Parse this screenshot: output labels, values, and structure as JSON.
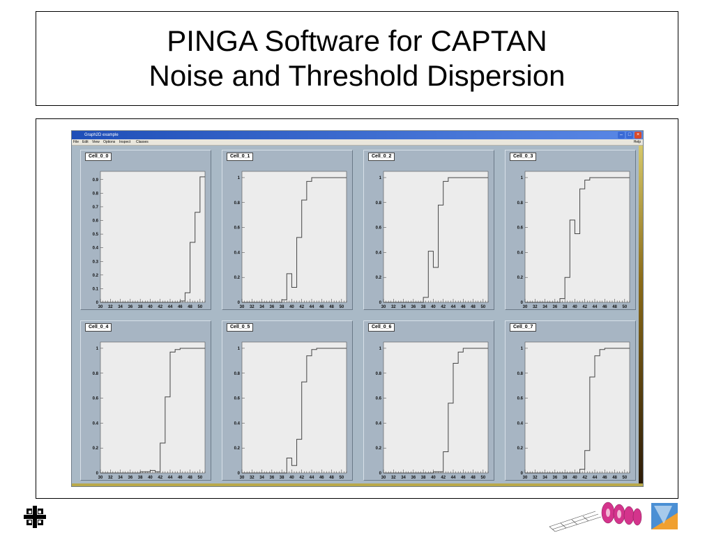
{
  "slide": {
    "title_line1": "PINGA Software for CAPTAN",
    "title_line2": "Noise and Threshold Dispersion"
  },
  "window": {
    "title": "Graph2D example",
    "menu": [
      "File",
      "Edit",
      "View",
      "Options",
      "Inspect",
      "Classes"
    ],
    "help": "Help"
  },
  "chart_data": [
    {
      "type": "line",
      "step": true,
      "title": "Cell_0_0",
      "x": [
        30,
        32,
        34,
        36,
        38,
        40,
        42,
        44,
        46,
        47,
        48,
        49,
        50,
        51
      ],
      "y": [
        0,
        0,
        0,
        0,
        0,
        0,
        0,
        0,
        0.01,
        0.07,
        0.44,
        0.66,
        0.92,
        0.92
      ],
      "xlim": [
        30,
        51
      ],
      "ylim": [
        0,
        0.96
      ],
      "xticks": [
        30,
        32,
        34,
        36,
        38,
        40,
        42,
        44,
        46,
        48,
        50
      ],
      "yticks": [
        0,
        0.1,
        0.2,
        0.3,
        0.4,
        0.5,
        0.6,
        0.7,
        0.8,
        0.9
      ]
    },
    {
      "type": "line",
      "step": true,
      "title": "Cell_0_1",
      "x": [
        30,
        38,
        39,
        40,
        41,
        42,
        43,
        44,
        51
      ],
      "y": [
        0,
        0.02,
        0.23,
        0.12,
        0.52,
        0.82,
        0.97,
        1.0,
        1.0
      ],
      "xlim": [
        30,
        51
      ],
      "ylim": [
        0,
        1.05
      ],
      "xticks": [
        30,
        32,
        34,
        36,
        38,
        40,
        42,
        44,
        46,
        48,
        50
      ],
      "yticks": [
        0,
        0.2,
        0.4,
        0.6,
        0.8,
        1
      ]
    },
    {
      "type": "line",
      "step": true,
      "title": "Cell_0_2",
      "x": [
        30,
        38,
        39,
        40,
        41,
        42,
        43,
        51
      ],
      "y": [
        0,
        0.04,
        0.41,
        0.28,
        0.78,
        0.97,
        1.0,
        1.0
      ],
      "xlim": [
        30,
        51
      ],
      "ylim": [
        0,
        1.05
      ],
      "xticks": [
        30,
        32,
        34,
        36,
        38,
        40,
        42,
        44,
        46,
        48,
        50
      ],
      "yticks": [
        0,
        0.2,
        0.4,
        0.6,
        0.8,
        1
      ]
    },
    {
      "type": "line",
      "step": true,
      "title": "Cell_0_3",
      "x": [
        30,
        37,
        38,
        39,
        40,
        41,
        42,
        43,
        51
      ],
      "y": [
        0,
        0.03,
        0.2,
        0.66,
        0.55,
        0.91,
        0.98,
        1.0,
        1.0
      ],
      "xlim": [
        30,
        51
      ],
      "ylim": [
        0,
        1.05
      ],
      "xticks": [
        30,
        32,
        34,
        36,
        38,
        40,
        42,
        44,
        46,
        48,
        50
      ],
      "yticks": [
        0,
        0.2,
        0.4,
        0.6,
        0.8,
        1
      ]
    },
    {
      "type": "line",
      "step": true,
      "title": "Cell_0_4",
      "x": [
        30,
        38,
        40,
        41,
        42,
        43,
        44,
        45,
        46,
        51
      ],
      "y": [
        0,
        0.01,
        0.02,
        0.01,
        0.24,
        0.61,
        0.97,
        0.99,
        1.0,
        1.0
      ],
      "xlim": [
        30,
        51
      ],
      "ylim": [
        0,
        1.05
      ],
      "xticks": [
        30,
        32,
        34,
        36,
        38,
        40,
        42,
        44,
        46,
        48,
        50
      ],
      "yticks": [
        0,
        0.2,
        0.4,
        0.6,
        0.8,
        1
      ]
    },
    {
      "type": "line",
      "step": true,
      "title": "Cell_0_5",
      "x": [
        30,
        39,
        40,
        41,
        42,
        43,
        44,
        45,
        51
      ],
      "y": [
        0,
        0.12,
        0.06,
        0.27,
        0.73,
        0.94,
        0.99,
        1.0,
        1.0
      ],
      "xlim": [
        30,
        51
      ],
      "ylim": [
        0,
        1.05
      ],
      "xticks": [
        30,
        32,
        34,
        36,
        38,
        40,
        42,
        44,
        46,
        48,
        50
      ],
      "yticks": [
        0,
        0.2,
        0.4,
        0.6,
        0.8,
        1
      ]
    },
    {
      "type": "line",
      "step": true,
      "title": "Cell_0_6",
      "x": [
        30,
        40,
        42,
        43,
        44,
        45,
        46,
        51
      ],
      "y": [
        0,
        0.01,
        0.17,
        0.56,
        0.88,
        0.97,
        1.0,
        1.0
      ],
      "xlim": [
        30,
        51
      ],
      "ylim": [
        0,
        1.05
      ],
      "xticks": [
        30,
        32,
        34,
        36,
        38,
        40,
        42,
        44,
        46,
        48,
        50
      ],
      "yticks": [
        0,
        0.2,
        0.4,
        0.6,
        0.8,
        1
      ]
    },
    {
      "type": "line",
      "step": true,
      "title": "Cell_0_7",
      "x": [
        30,
        41,
        42,
        43,
        44,
        45,
        46,
        51
      ],
      "y": [
        0,
        0.03,
        0.18,
        0.77,
        0.94,
        0.99,
        1.0,
        1.0
      ],
      "xlim": [
        30,
        51
      ],
      "ylim": [
        0,
        1.05
      ],
      "xticks": [
        30,
        32,
        34,
        36,
        38,
        40,
        42,
        44,
        46,
        48,
        50
      ],
      "yticks": [
        0,
        0.2,
        0.4,
        0.6,
        0.8,
        1
      ]
    }
  ]
}
